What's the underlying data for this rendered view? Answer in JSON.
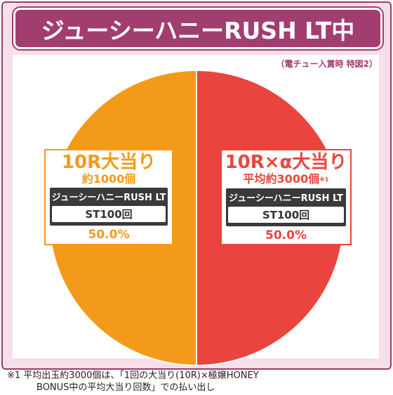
{
  "title": "ジューシーハニーRUSH LT中",
  "note_top": "（電チュー入賞時 特図2）",
  "chart_data": {
    "type": "pie",
    "title": "ジューシーハニーRUSH LT中",
    "slices": [
      {
        "label": "10R大当り",
        "sub": "約1000個",
        "mode": "ジューシーハニーRUSH LT",
        "st": "ST100回",
        "value": 50.0,
        "value_label": "50.0%",
        "color": "#f39a1a"
      },
      {
        "label": "10R×α大当り",
        "sub": "平均約3000個",
        "sub_mark": "※1",
        "mode": "ジューシーハニーRUSH LT",
        "st": "ST100回",
        "value": 50.0,
        "value_label": "50.0%",
        "color": "#e9453e"
      }
    ]
  },
  "footnote": {
    "line1": "※1  平均出玉約3000個は、「1回の大当り(10R)×極嬢HONEY",
    "line2": "BONUS中の平均大当り回数」での払い出し"
  }
}
